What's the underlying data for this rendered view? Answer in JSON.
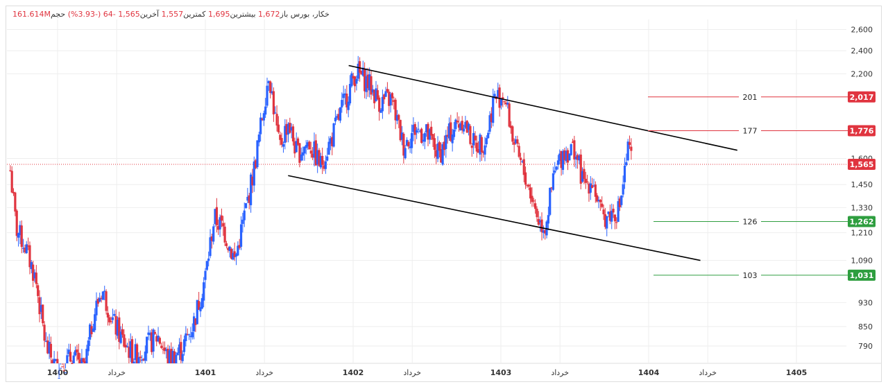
{
  "header": {
    "symbol": "خکار، بورس",
    "open_label": "باز",
    "open_value": "1,672",
    "high_label": "بیشترین",
    "high_value": "1,695",
    "low_label": "کمترین",
    "low_value": "1,557",
    "close_label": "آخرین",
    "close_value": "1,565",
    "change_value": "-64",
    "change_pct": "(-3.93%)",
    "volume_label": "حجم",
    "volume_value": "161.614M"
  },
  "colors": {
    "up": "#2962ff",
    "down": "#e0343f",
    "channel": "#000000",
    "resistance": "#e0343f",
    "support": "#2e9e3f",
    "grid": "#eeeeee",
    "current_price": "#e0343f"
  },
  "chart_data": {
    "type": "candlestick",
    "y_scale": "log",
    "ylim": [
      740,
      2700
    ],
    "y_ticks": [
      "2,600",
      "2,400",
      "2,200",
      "1,600",
      "1,450",
      "1,330",
      "1,210",
      "1,090",
      "930",
      "850",
      "790"
    ],
    "x_ticks": [
      {
        "label": "1400",
        "bold": true,
        "t": 1400.0
      },
      {
        "label": "خرداد",
        "bold": false,
        "t": 1400.4
      },
      {
        "label": "1401",
        "bold": true,
        "t": 1401.0
      },
      {
        "label": "خرداد",
        "bold": false,
        "t": 1401.4
      },
      {
        "label": "1402",
        "bold": true,
        "t": 1402.0
      },
      {
        "label": "خرداد",
        "bold": false,
        "t": 1402.4
      },
      {
        "label": "1403",
        "bold": true,
        "t": 1403.0
      },
      {
        "label": "خرداد",
        "bold": false,
        "t": 1403.4
      },
      {
        "label": "1404",
        "bold": true,
        "t": 1404.0
      },
      {
        "label": "خرداد",
        "bold": false,
        "t": 1404.4
      },
      {
        "label": "1405",
        "bold": true,
        "t": 1405.0
      }
    ],
    "price_levels": [
      {
        "label": "2,017",
        "count": "201",
        "value": 2017,
        "kind": "resistance"
      },
      {
        "label": "1,776",
        "count": "177",
        "value": 1776,
        "kind": "resistance"
      },
      {
        "label": "1,262",
        "count": "126",
        "value": 1262,
        "kind": "support"
      },
      {
        "label": "1,031",
        "count": "103",
        "value": 1031,
        "kind": "support"
      }
    ],
    "current_price": {
      "label": "1,565",
      "value": 1565
    },
    "channel_upper": [
      {
        "t": 1401.97,
        "y": 2270
      },
      {
        "t": 1404.6,
        "y": 1650
      }
    ],
    "channel_lower": [
      {
        "t": 1401.56,
        "y": 1500
      },
      {
        "t": 1404.35,
        "y": 1090
      }
    ],
    "anchors": [
      [
        1399.68,
        1530
      ],
      [
        1399.72,
        1230
      ],
      [
        1399.78,
        1150
      ],
      [
        1399.85,
        1020
      ],
      [
        1399.92,
        790
      ],
      [
        1400.0,
        720
      ],
      [
        1400.1,
        760
      ],
      [
        1400.18,
        720
      ],
      [
        1400.24,
        880
      ],
      [
        1400.3,
        980
      ],
      [
        1400.38,
        860
      ],
      [
        1400.45,
        800
      ],
      [
        1400.52,
        760
      ],
      [
        1400.6,
        790
      ],
      [
        1400.68,
        820
      ],
      [
        1400.75,
        750
      ],
      [
        1400.84,
        780
      ],
      [
        1400.92,
        860
      ],
      [
        1400.96,
        940
      ],
      [
        1401.0,
        1030
      ],
      [
        1401.06,
        1280
      ],
      [
        1401.12,
        1230
      ],
      [
        1401.2,
        1090
      ],
      [
        1401.27,
        1310
      ],
      [
        1401.33,
        1540
      ],
      [
        1401.38,
        1840
      ],
      [
        1401.43,
        2220
      ],
      [
        1401.5,
        1660
      ],
      [
        1401.56,
        1840
      ],
      [
        1401.62,
        1630
      ],
      [
        1401.7,
        1700
      ],
      [
        1401.78,
        1560
      ],
      [
        1401.86,
        1740
      ],
      [
        1401.93,
        1950
      ],
      [
        1402.02,
        2220
      ],
      [
        1402.1,
        2130
      ],
      [
        1402.18,
        1980
      ],
      [
        1402.26,
        2000
      ],
      [
        1402.34,
        1680
      ],
      [
        1402.42,
        1790
      ],
      [
        1402.5,
        1750
      ],
      [
        1402.58,
        1620
      ],
      [
        1402.66,
        1770
      ],
      [
        1402.74,
        1860
      ],
      [
        1402.82,
        1680
      ],
      [
        1402.9,
        1720
      ],
      [
        1402.95,
        2000
      ],
      [
        1403.02,
        2040
      ],
      [
        1403.1,
        1650
      ],
      [
        1403.18,
        1460
      ],
      [
        1403.26,
        1260
      ],
      [
        1403.3,
        1240
      ],
      [
        1403.36,
        1500
      ],
      [
        1403.42,
        1640
      ],
      [
        1403.5,
        1660
      ],
      [
        1403.56,
        1450
      ],
      [
        1403.62,
        1480
      ],
      [
        1403.68,
        1280
      ],
      [
        1403.74,
        1300
      ],
      [
        1403.8,
        1320
      ],
      [
        1403.86,
        1650
      ],
      [
        1403.89,
        1590
      ]
    ]
  }
}
